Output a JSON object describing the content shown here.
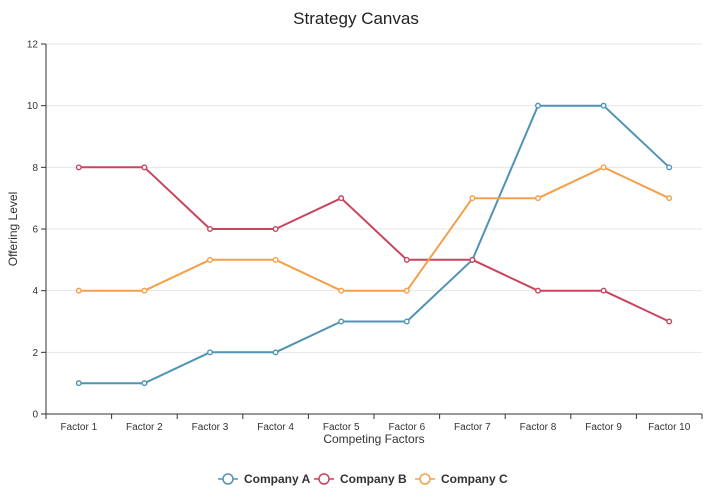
{
  "chart_data": {
    "type": "line",
    "title": "Strategy Canvas",
    "xlabel": "Competing Factors",
    "ylabel": "Offering Level",
    "ylim": [
      0,
      12
    ],
    "yticks": [
      0,
      2,
      4,
      6,
      8,
      10,
      12
    ],
    "grid": "horizontal",
    "legend_position": "bottom",
    "categories": [
      "Factor 1",
      "Factor 2",
      "Factor 3",
      "Factor 4",
      "Factor 5",
      "Factor 6",
      "Factor 7",
      "Factor 8",
      "Factor 9",
      "Factor 10"
    ],
    "series": [
      {
        "name": "Company A",
        "color": "#4f94b5",
        "values": [
          1,
          1,
          2,
          2,
          3,
          3,
          5,
          10,
          10,
          8
        ]
      },
      {
        "name": "Company B",
        "color": "#c8455e",
        "values": [
          8,
          8,
          6,
          6,
          7,
          5,
          5,
          4,
          4,
          3
        ]
      },
      {
        "name": "Company C",
        "color": "#f4a04b",
        "values": [
          4,
          4,
          5,
          5,
          4,
          4,
          7,
          7,
          8,
          7
        ]
      }
    ]
  }
}
